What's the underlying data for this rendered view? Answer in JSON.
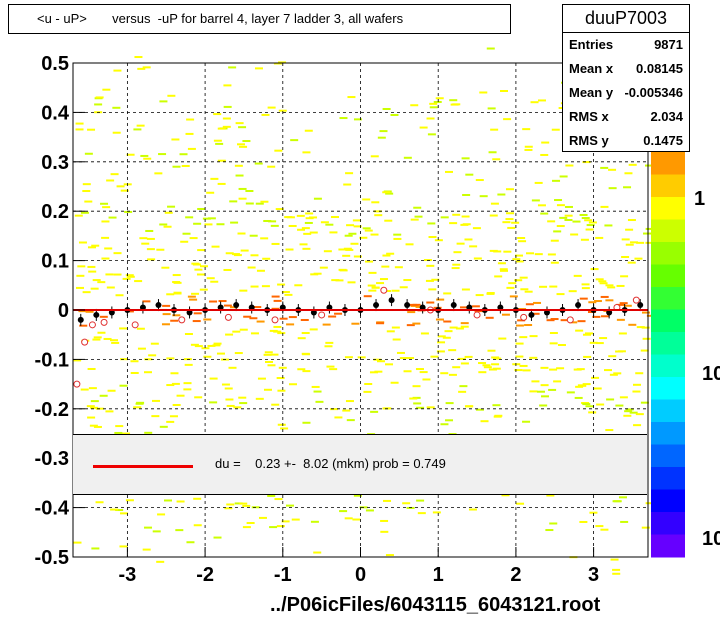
{
  "title": "<u - uP>       versus  -uP for barrel 4, layer 7 ladder 3, all wafers",
  "stats": {
    "name": "duuP7003",
    "rows": [
      {
        "key": "Entries",
        "value": "9871"
      },
      {
        "key": "Mean x",
        "value": "0.08145"
      },
      {
        "key": "Mean y",
        "value": "-0.005346"
      },
      {
        "key": "RMS x",
        "value": "2.034"
      },
      {
        "key": "RMS y",
        "value": "0.1475"
      }
    ]
  },
  "fit_legend": "du =    0.23 +-  8.02 (mkm) prob = 0.749",
  "file_label": "../P06icFiles/6043115_6043121.root",
  "colors": {
    "fit_line": "#e00000",
    "profile_marker": "#000000",
    "profile_open_marker": "#e03030",
    "band_yellow": "#ffff00",
    "band_orange": "#ff9900"
  },
  "chart_data": {
    "type": "heatmap",
    "xlim": [
      -3.7,
      3.7
    ],
    "ylim": [
      -0.5,
      0.5
    ],
    "x_ticks": [
      "-3",
      "-2",
      "-1",
      "0",
      "1",
      "2",
      "3"
    ],
    "y_ticks": [
      "0.5",
      "0.4",
      "0.3",
      "0.2",
      "0.1",
      "0",
      "-0.1",
      "-0.2",
      "-0.3",
      "-0.4",
      "-0.5"
    ],
    "x_tick_values": [
      -3,
      -2,
      -1,
      0,
      1,
      2,
      3
    ],
    "y_tick_values": [
      0.5,
      0.4,
      0.3,
      0.2,
      0.1,
      0,
      -0.1,
      -0.2,
      -0.3,
      -0.4,
      -0.5
    ],
    "color_scale_labels": [
      "1",
      "10",
      "10"
    ],
    "grid": true,
    "fit": {
      "du": 0.23,
      "error": 8.02,
      "unit": "mkm",
      "prob": 0.749
    },
    "profile": {
      "x": [
        -3.6,
        -3.4,
        -3.2,
        -3.0,
        -2.8,
        -2.6,
        -2.4,
        -2.2,
        -2.0,
        -1.8,
        -1.6,
        -1.4,
        -1.2,
        -1.0,
        -0.8,
        -0.6,
        -0.4,
        -0.2,
        0.0,
        0.2,
        0.4,
        0.6,
        0.8,
        1.0,
        1.2,
        1.4,
        1.6,
        1.8,
        2.0,
        2.2,
        2.4,
        2.6,
        2.8,
        3.0,
        3.2,
        3.4,
        3.6
      ],
      "y": [
        -0.02,
        -0.01,
        -0.005,
        0.0,
        0.005,
        0.01,
        0.0,
        -0.005,
        0.0,
        0.005,
        0.01,
        0.005,
        0.0,
        0.005,
        0.0,
        -0.005,
        0.005,
        0.0,
        0.0,
        0.01,
        0.02,
        0.01,
        0.005,
        0.0,
        0.01,
        0.005,
        0.0,
        0.005,
        0.0,
        -0.01,
        -0.005,
        0.0,
        0.01,
        0.0,
        -0.005,
        0.0,
        0.01
      ]
    },
    "profile_open": {
      "x": [
        -3.65,
        -3.55,
        -3.45,
        -3.3,
        -2.9,
        -2.3,
        -1.7,
        -1.1,
        -0.5,
        0.3,
        0.9,
        1.5,
        2.1,
        2.7,
        3.3,
        3.55
      ],
      "y": [
        -0.15,
        -0.065,
        -0.03,
        -0.025,
        -0.03,
        -0.02,
        -0.015,
        -0.02,
        -0.01,
        0.04,
        0.0,
        -0.01,
        -0.015,
        -0.02,
        0.005,
        0.02
      ]
    }
  }
}
